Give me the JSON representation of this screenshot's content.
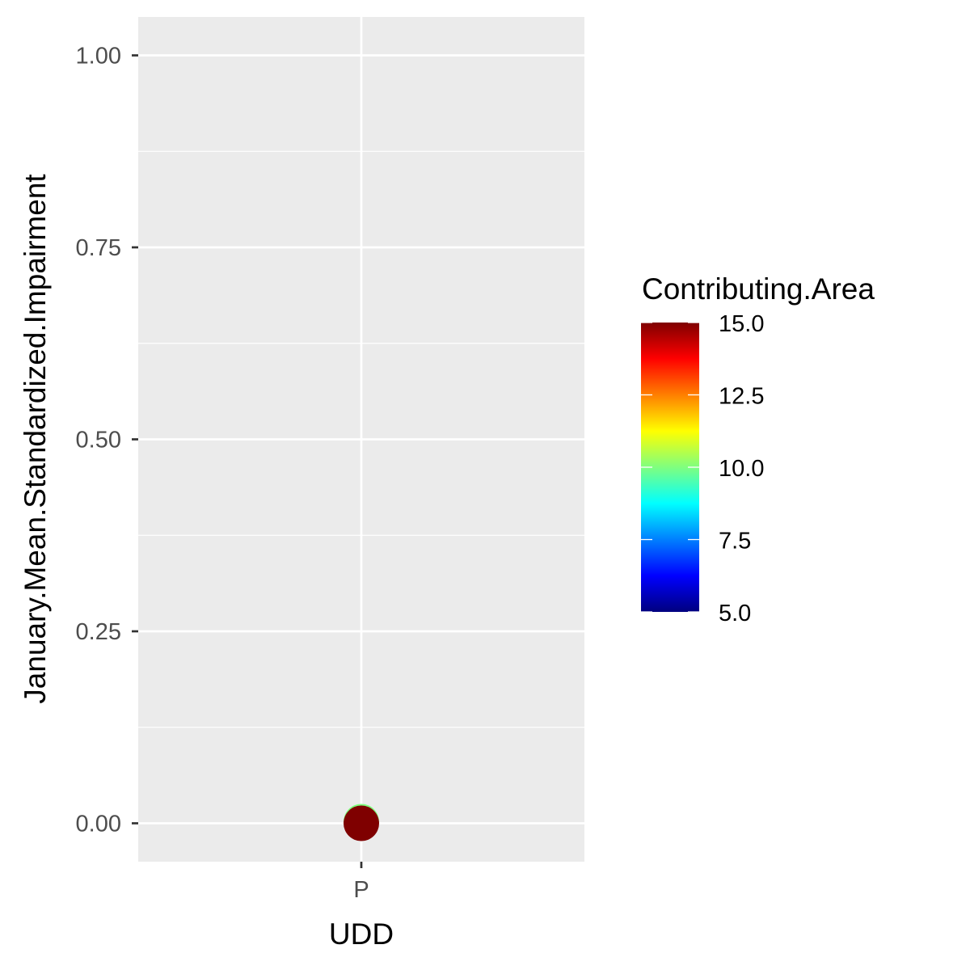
{
  "chart_data": {
    "type": "scatter",
    "xlabel": "UDD",
    "ylabel": "January.Mean.Standardized.Impairment",
    "categories": [
      "P"
    ],
    "ylim": [
      -0.05,
      1.05
    ],
    "y_ticks": [
      0.0,
      0.25,
      0.5,
      0.75,
      1.0
    ],
    "y_tick_labels": [
      "0.00",
      "0.25",
      "0.50",
      "0.75",
      "1.00"
    ],
    "grid": true,
    "background": "#ebebeb",
    "gridline_color": "#ffffff",
    "points": [
      {
        "x": "P",
        "y": 0.0,
        "contributing_area": 15.0,
        "color": "#7f0000"
      },
      {
        "x": "P",
        "y": 0.0,
        "contributing_area": 10.2,
        "color": "#7fff7f"
      }
    ],
    "legend": {
      "title": "Contributing.Area",
      "position": "right",
      "type": "colorbar",
      "range": [
        5.0,
        15.0
      ],
      "breaks": [
        5.0,
        7.5,
        10.0,
        12.5,
        15.0
      ],
      "break_labels": [
        "5.0",
        "7.5",
        "10.0",
        "12.5",
        "15.0"
      ],
      "colors": [
        "#00007f",
        "#0000ff",
        "#007fff",
        "#00ffff",
        "#7fff7f",
        "#ffff00",
        "#ff7f00",
        "#ff0000",
        "#7f0000"
      ]
    }
  }
}
